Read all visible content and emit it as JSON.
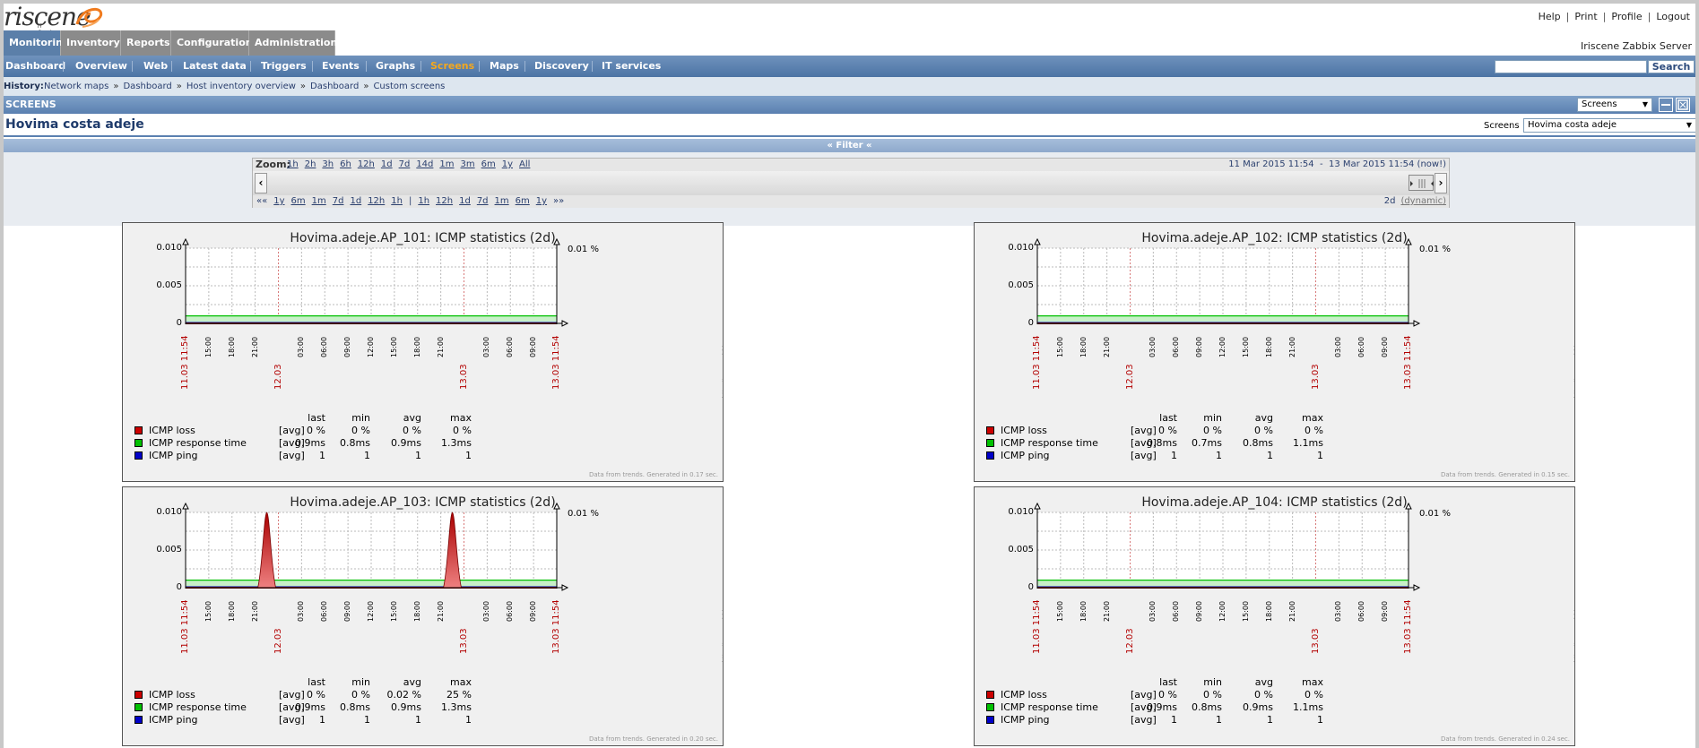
{
  "header": {
    "logo_text": "riscene",
    "logo_sub": "IT Services",
    "links": [
      "Help",
      "Print",
      "Profile",
      "Logout"
    ]
  },
  "main_menu": [
    "Monitoring",
    "Inventory",
    "Reports",
    "Configuration",
    "Administration"
  ],
  "server_name": "Iriscene Zabbix Server",
  "sub_menu": [
    "Dashboard",
    "Overview",
    "Web",
    "Latest data",
    "Triggers",
    "Events",
    "Graphs",
    "Screens",
    "Maps",
    "Discovery",
    "IT services"
  ],
  "sub_menu_active": "Screens",
  "search": {
    "value": "",
    "button": "Search"
  },
  "history": {
    "label": "History:",
    "items": [
      "Network maps",
      "Dashboard",
      "Host inventory overview",
      "Dashboard",
      "Custom screens"
    ]
  },
  "screens_bar": {
    "title": "SCREENS",
    "select_value": "Screens"
  },
  "screen": {
    "title": "Hovima costa adeje",
    "select_label": "Screens",
    "select_value": "Hovima costa adeje"
  },
  "filter": {
    "label": "« Filter «"
  },
  "zoom": {
    "label": "Zoom:",
    "options": [
      "1h",
      "2h",
      "3h",
      "6h",
      "12h",
      "1d",
      "7d",
      "14d",
      "1m",
      "3m",
      "6m",
      "1y",
      "All"
    ],
    "period_from": "11 Mar 2015 11:54",
    "period_to": "13 Mar 2015 11:54 (now!)",
    "nav_back": [
      "««",
      "1y",
      "6m",
      "1m",
      "7d",
      "1d",
      "12h",
      "1h"
    ],
    "nav_fwd": [
      "1h",
      "12h",
      "1d",
      "7d",
      "1m",
      "6m",
      "1y",
      "»»"
    ],
    "duration": "2d",
    "dynamic": "(dynamic)"
  },
  "colors": {
    "loss": "#cc0000",
    "response": "#00c000",
    "ping": "#0000c8",
    "accent": "#5b7fa9"
  },
  "graph_common": {
    "y_ticks": [
      "0.010",
      "0.005",
      "0"
    ],
    "right_label": "0.01 %",
    "x_start": "11.03 11:54",
    "x_mid1": "12.03",
    "x_mid2": "13.03",
    "x_end": "13.03 11:54",
    "x_hours_a": [
      "15:00",
      "18:00",
      "21:00"
    ],
    "x_hours_b": [
      "03:00",
      "06:00",
      "09:00",
      "12:00",
      "15:00",
      "18:00",
      "21:00"
    ],
    "x_hours_c": [
      "03:00",
      "06:00",
      "09:00"
    ],
    "cols": [
      "last",
      "min",
      "avg",
      "max"
    ],
    "url": "http://www.zabbix.com"
  },
  "chart_data": [
    {
      "type": "line",
      "title": "Hovima.adeje.AP_101: ICMP statistics (2d)",
      "ylim": [
        0,
        0.01
      ],
      "series": [
        {
          "name": "ICMP loss",
          "fn": "[avg]",
          "last": "0 %",
          "min": "0 %",
          "avg": "0 %",
          "max": "0 %"
        },
        {
          "name": "ICMP response time",
          "fn": "[avg]",
          "last": "0.9ms",
          "min": "0.8ms",
          "avg": "0.9ms",
          "max": "1.3ms"
        },
        {
          "name": "ICMP ping",
          "fn": "[avg]",
          "last": "1",
          "min": "1",
          "avg": "1",
          "max": "1"
        }
      ],
      "loss_spikes": [],
      "footer": "Data from trends. Generated in 0.17 sec."
    },
    {
      "type": "line",
      "title": "Hovima.adeje.AP_102: ICMP statistics (2d)",
      "ylim": [
        0,
        0.01
      ],
      "series": [
        {
          "name": "ICMP loss",
          "fn": "[avg]",
          "last": "0 %",
          "min": "0 %",
          "avg": "0 %",
          "max": "0 %"
        },
        {
          "name": "ICMP response time",
          "fn": "[avg]",
          "last": "0.8ms",
          "min": "0.7ms",
          "avg": "0.8ms",
          "max": "1.1ms"
        },
        {
          "name": "ICMP ping",
          "fn": "[avg]",
          "last": "1",
          "min": "1",
          "avg": "1",
          "max": "1"
        }
      ],
      "loss_spikes": [],
      "footer": "Data from trends. Generated in 0.15 sec."
    },
    {
      "type": "line",
      "title": "Hovima.adeje.AP_103: ICMP statistics (2d)",
      "ylim": [
        0,
        0.01
      ],
      "series": [
        {
          "name": "ICMP loss",
          "fn": "[avg]",
          "last": "0 %",
          "min": "0 %",
          "avg": "0.02 %",
          "max": "25 %"
        },
        {
          "name": "ICMP response time",
          "fn": "[avg]",
          "last": "0.9ms",
          "min": "0.8ms",
          "avg": "0.9ms",
          "max": "1.3ms"
        },
        {
          "name": "ICMP ping",
          "fn": "[avg]",
          "last": "1",
          "min": "1",
          "avg": "1",
          "max": "1"
        }
      ],
      "loss_spikes": [
        {
          "hours": 10.5,
          "value": 0.01
        },
        {
          "hours": 34.5,
          "value": 0.01
        }
      ],
      "footer": "Data from trends. Generated in 0.20 sec."
    },
    {
      "type": "line",
      "title": "Hovima.adeje.AP_104: ICMP statistics (2d)",
      "ylim": [
        0,
        0.01
      ],
      "series": [
        {
          "name": "ICMP loss",
          "fn": "[avg]",
          "last": "0 %",
          "min": "0 %",
          "avg": "0 %",
          "max": "0 %"
        },
        {
          "name": "ICMP response time",
          "fn": "[avg]",
          "last": "0.9ms",
          "min": "0.8ms",
          "avg": "0.9ms",
          "max": "1.1ms"
        },
        {
          "name": "ICMP ping",
          "fn": "[avg]",
          "last": "1",
          "min": "1",
          "avg": "1",
          "max": "1"
        }
      ],
      "loss_spikes": [],
      "footer": "Data from trends. Generated in 0.24 sec."
    }
  ]
}
